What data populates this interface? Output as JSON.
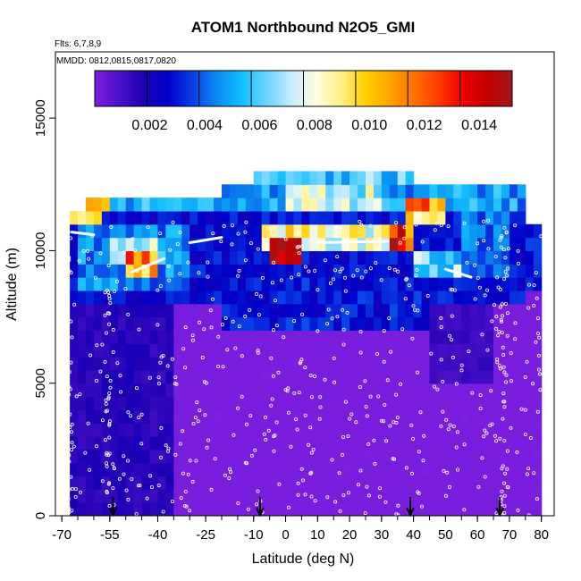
{
  "chart_data": {
    "type": "heatmap",
    "title": "ATOM1 Northbound N2O5_GMI",
    "flights_note": "Flts: 6,7,8,9",
    "dates_note": "MMDD: 0812,0815,0817,0820",
    "xlabel": "Latitude (deg N)",
    "ylabel": "Altitude (m)",
    "xlim": [
      -72,
      84
    ],
    "ylim": [
      0,
      17500
    ],
    "x_ticks": [
      -70,
      -55,
      -40,
      -25,
      -10,
      0,
      10,
      20,
      30,
      40,
      50,
      60,
      70,
      80
    ],
    "x_tick_labels": [
      "-70",
      "-55",
      "-40",
      "-25",
      "-10",
      "0",
      "10",
      "20",
      "30",
      "40",
      "50",
      "60",
      "70",
      "80"
    ],
    "y_ticks": [
      0,
      5000,
      10000,
      15000
    ],
    "y_tick_labels": [
      "0",
      "5000",
      "10000",
      "15000"
    ],
    "colorbar": {
      "min": 0,
      "max": 0.0152,
      "ticks": [
        0.002,
        0.004,
        0.006,
        0.008,
        0.01,
        0.012,
        0.014
      ],
      "tick_labels": [
        "0.002",
        "0.004",
        "0.006",
        "0.008",
        "0.010",
        "0.012",
        "0.014"
      ],
      "colors": [
        "#7f1fe0",
        "#4a10c8",
        "#1e00b4",
        "#0000c8",
        "#0a40e6",
        "#0a8cf0",
        "#12c0ff",
        "#6ad4ff",
        "#c4ecff",
        "#fffde0",
        "#fff08a",
        "#ffd200",
        "#ffa400",
        "#ff7200",
        "#ff3c00",
        "#ee0000",
        "#c00000",
        "#a01818"
      ]
    },
    "grid": false,
    "arrow_markers_latitude": [
      -54,
      -8,
      39,
      67
    ],
    "regions": [
      {
        "lat": [
          -70,
          80
        ],
        "alt": [
          0,
          8000
        ],
        "value": 0.0001
      },
      {
        "lat": [
          -70,
          -35
        ],
        "alt": [
          0,
          11000
        ],
        "value": 0.0015
      },
      {
        "lat": [
          -68,
          -45
        ],
        "alt": [
          2000,
          9500
        ],
        "value": 0.0018
      },
      {
        "lat": [
          -70,
          -50
        ],
        "alt": [
          0,
          8500
        ],
        "value": 0.0016
      },
      {
        "lat": [
          -70,
          75
        ],
        "alt": [
          8000,
          11500
        ],
        "value": 0.0028
      },
      {
        "lat": [
          -65,
          -30
        ],
        "alt": [
          8500,
          11000
        ],
        "value": 0.0045
      },
      {
        "lat": [
          -55,
          -38
        ],
        "alt": [
          9600,
          10500
        ],
        "value": 0.0068
      },
      {
        "lat": [
          -50,
          -40
        ],
        "alt": [
          9200,
          9800
        ],
        "value": 0.011
      },
      {
        "lat": [
          -70,
          -57
        ],
        "alt": [
          11000,
          11500
        ],
        "value": 0.0082
      },
      {
        "lat": [
          -62,
          -55
        ],
        "alt": [
          11500,
          12000
        ],
        "value": 0.0098
      },
      {
        "lat": [
          -55,
          -30
        ],
        "alt": [
          11500,
          12000
        ],
        "value": 0.0052
      },
      {
        "lat": [
          -35,
          75
        ],
        "alt": [
          11500,
          12500
        ],
        "value": 0.0048
      },
      {
        "lat": [
          -10,
          40
        ],
        "alt": [
          12500,
          13000
        ],
        "value": 0.0058
      },
      {
        "lat": [
          0,
          30
        ],
        "alt": [
          11500,
          12500
        ],
        "value": 0.0072
      },
      {
        "lat": [
          -8,
          10
        ],
        "alt": [
          10000,
          11000
        ],
        "value": 0.0095
      },
      {
        "lat": [
          -5,
          5
        ],
        "alt": [
          9500,
          10500
        ],
        "value": 0.0125
      },
      {
        "lat": [
          10,
          35
        ],
        "alt": [
          10000,
          11000
        ],
        "value": 0.0078
      },
      {
        "lat": [
          33,
          40
        ],
        "alt": [
          10000,
          11000
        ],
        "value": 0.0135
      },
      {
        "lat": [
          38,
          50
        ],
        "alt": [
          11000,
          12000
        ],
        "value": 0.0105
      },
      {
        "lat": [
          40,
          55
        ],
        "alt": [
          9000,
          10000
        ],
        "value": 0.0062
      },
      {
        "lat": [
          55,
          70
        ],
        "alt": [
          9000,
          11500
        ],
        "value": 0.0042
      },
      {
        "lat": [
          -20,
          55
        ],
        "alt": [
          7000,
          9000
        ],
        "value": 0.003
      },
      {
        "lat": [
          45,
          65
        ],
        "alt": [
          5000,
          8000
        ],
        "value": 0.0012
      }
    ]
  }
}
